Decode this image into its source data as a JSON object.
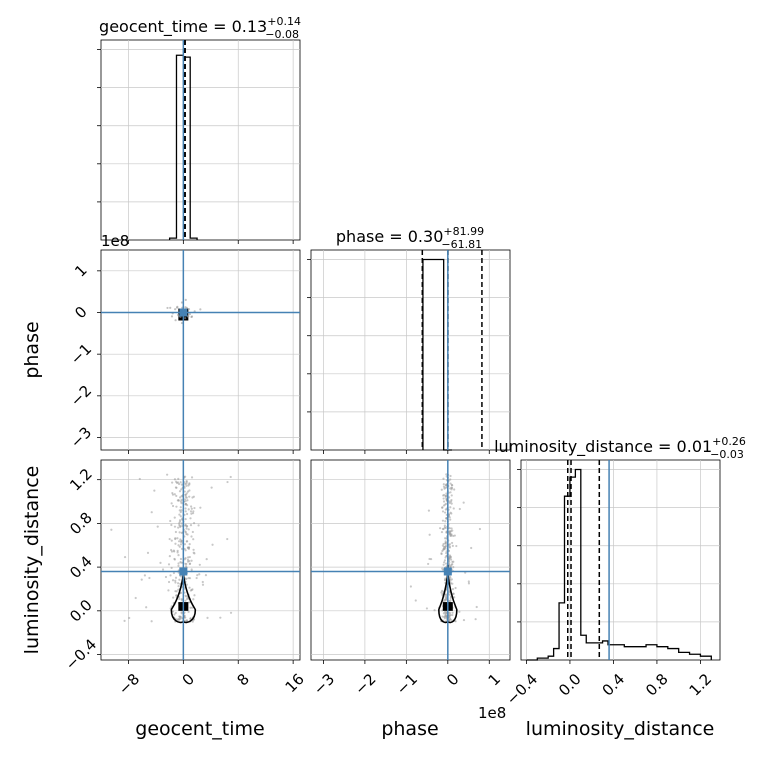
{
  "chart_data": {
    "type": "corner",
    "params": [
      "geocent_time",
      "phase",
      "luminosity_distance"
    ],
    "axis_labels": {
      "geocent_time": "geocent_time",
      "phase": "phase",
      "luminosity_distance": "luminosity_distance"
    },
    "titles": {
      "geocent_time": {
        "name": "geocent_time",
        "median": "0.13",
        "plus": "+0.14",
        "minus": "−0.08"
      },
      "phase": {
        "name": "phase",
        "median": "0.30",
        "plus": "+81.99",
        "minus": "−61.81"
      },
      "luminosity_distance": {
        "name": "luminosity_distance",
        "median": "0.01",
        "plus": "+0.26",
        "minus": "−0.03"
      }
    },
    "axis_offset_labels": {
      "geocent_time_phase_panel": "1e8",
      "phase_x_axis": "1e8"
    },
    "ranges": {
      "geocent_time": [
        -12,
        17
      ],
      "phase": [
        -330000000,
        150000000
      ],
      "luminosity_distance": [
        -0.45,
        1.38
      ]
    },
    "ticks": {
      "geocent_time": [
        {
          "v": -8,
          "label": "−8"
        },
        {
          "v": 0,
          "label": "0"
        },
        {
          "v": 8,
          "label": "8"
        },
        {
          "v": 16,
          "label": "16"
        }
      ],
      "phase": [
        {
          "v": -300000000,
          "label": "−3"
        },
        {
          "v": -200000000,
          "label": "−2"
        },
        {
          "v": -100000000,
          "label": "−1"
        },
        {
          "v": 0,
          "label": "0"
        },
        {
          "v": 100000000,
          "label": "1"
        }
      ],
      "luminosity_distance": [
        {
          "v": -0.4,
          "label": "−0.4"
        },
        {
          "v": 0.0,
          "label": "0.0"
        },
        {
          "v": 0.4,
          "label": "0.4"
        },
        {
          "v": 0.8,
          "label": "0.8"
        },
        {
          "v": 1.2,
          "label": "1.2"
        }
      ]
    },
    "truths": {
      "geocent_time": 0.0,
      "phase": 0.0,
      "luminosity_distance": 0.36
    },
    "quantiles": {
      "geocent_time": [
        0.05,
        0.13,
        0.27
      ],
      "phase": [
        -61510000,
        300000,
        82290000
      ],
      "luminosity_distance": [
        -0.02,
        0.01,
        0.27
      ]
    },
    "histograms": {
      "geocent_time": {
        "edges": [
          -2,
          -1,
          0,
          1,
          2
        ],
        "counts": [
          0.01,
          0.97,
          0.96,
          0.01
        ]
      },
      "phase": {
        "edges": [
          -60000000,
          -10000000,
          10000000
        ],
        "counts": [
          1.0,
          0.0
        ]
      },
      "luminosity_distance": {
        "edges": [
          -0.4,
          -0.35,
          -0.3,
          -0.25,
          -0.2,
          -0.15,
          -0.1,
          -0.05,
          0.0,
          0.05,
          0.1,
          0.15,
          0.2,
          0.25,
          0.3,
          0.35,
          0.4,
          0.5,
          0.6,
          0.7,
          0.8,
          0.9,
          1.0,
          1.1,
          1.2,
          1.3
        ],
        "counts": [
          0.0,
          0.0,
          0.01,
          0.01,
          0.02,
          0.06,
          0.3,
          0.86,
          0.96,
          1.0,
          0.13,
          0.09,
          0.09,
          0.09,
          0.1,
          0.08,
          0.08,
          0.07,
          0.07,
          0.08,
          0.07,
          0.06,
          0.04,
          0.03,
          0.02
        ]
      },
      "ylim": [
        0,
        1.05
      ]
    },
    "scatter_density": [
      {
        "x": "geocent_time",
        "y": "luminosity_distance",
        "x_center": 0.0,
        "x_spread": 1.5,
        "y_range": [
          -0.1,
          1.25
        ]
      },
      {
        "x": "phase",
        "y": "luminosity_distance",
        "x_center": 0.0,
        "x_spread": 12000000,
        "y_range": [
          -0.1,
          1.25
        ]
      }
    ],
    "grid": true
  }
}
